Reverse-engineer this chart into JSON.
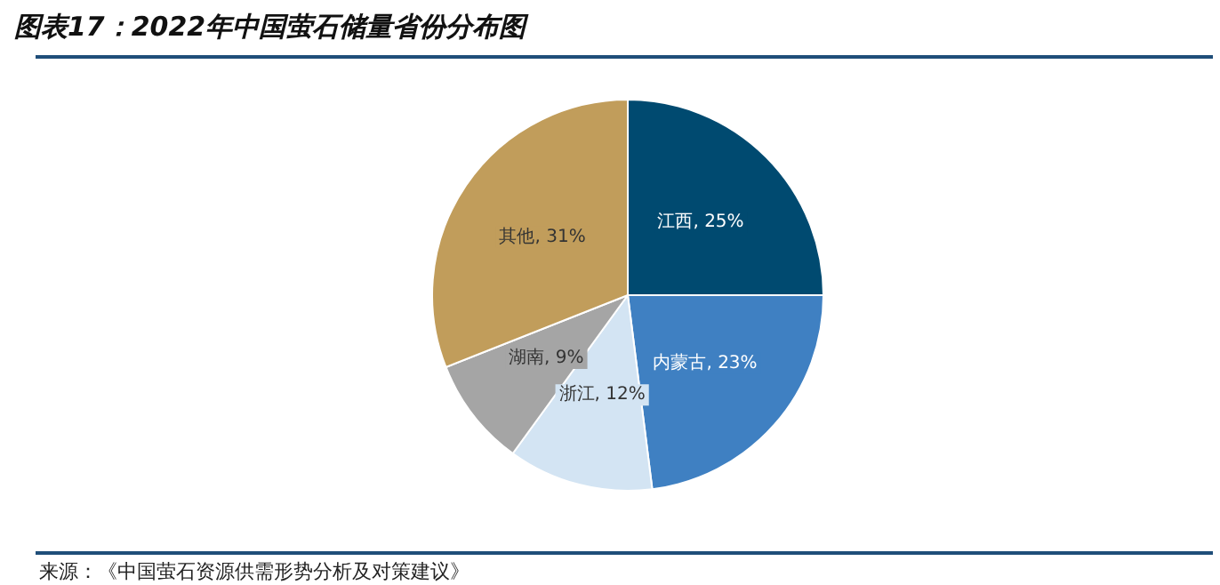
{
  "chart_data": {
    "type": "pie",
    "title": "图表17：2022年中国萤石储量省份分布图",
    "categories": [
      "江西",
      "内蒙古",
      "浙江",
      "湖南",
      "其他"
    ],
    "values": [
      25,
      23,
      12,
      9,
      31
    ],
    "value_labels": [
      "25%",
      "23%",
      "12%",
      "9%",
      "31%"
    ],
    "colors": [
      "#004a70",
      "#3f80c2",
      "#d3e4f3",
      "#a5a5a5",
      "#c19d5b"
    ],
    "legend": false,
    "annotations": [
      "来源：《中国萤石资源供需形势分析及对策建议》"
    ]
  }
}
